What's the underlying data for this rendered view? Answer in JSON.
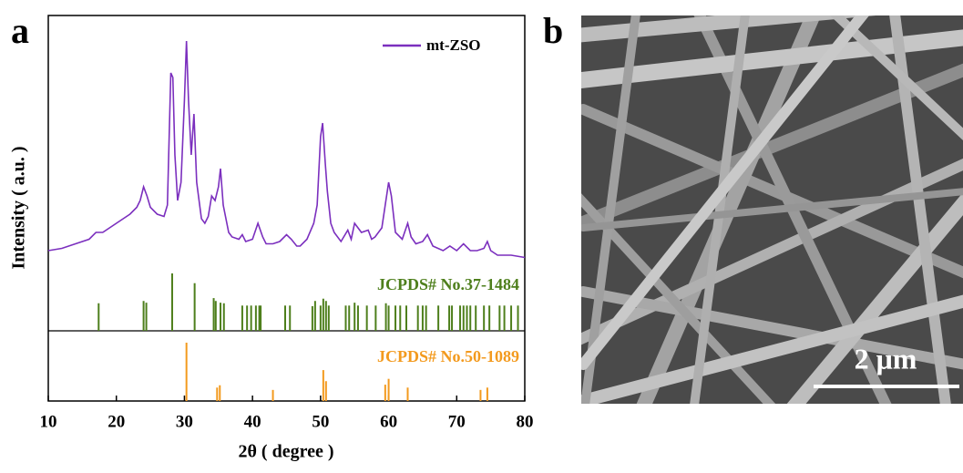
{
  "chart_data": {
    "type": "line",
    "panel_label": "a",
    "xlabel": "2θ ( degree )",
    "ylabel": "Intensity ( a.u. )",
    "xlim": [
      10,
      80
    ],
    "xticks": [
      10,
      20,
      30,
      40,
      50,
      60,
      70,
      80
    ],
    "ylim": [
      0,
      100
    ],
    "series": [
      {
        "name": "mt-ZSO",
        "color": "#7b2fbe",
        "x": [
          10,
          12,
          14,
          16,
          17,
          18,
          19,
          20,
          21,
          22,
          23,
          23.5,
          24,
          24.5,
          25,
          26,
          27,
          27.5,
          28,
          28.3,
          28.6,
          29,
          29.5,
          30,
          30.3,
          30.6,
          31,
          31.4,
          31.8,
          32.5,
          33,
          33.5,
          34,
          34.5,
          35,
          35.3,
          35.7,
          36.5,
          37,
          38,
          38.5,
          39,
          40,
          40.8,
          41.5,
          42,
          43,
          44,
          45,
          45.7,
          46.5,
          47,
          48,
          49,
          49.5,
          50,
          50.3,
          50.7,
          51,
          51.5,
          52,
          53,
          54,
          54.5,
          55,
          55.5,
          56,
          57,
          57.5,
          58,
          59,
          59.5,
          60,
          60.4,
          61,
          62,
          62.8,
          63.3,
          64,
          65,
          65.7,
          66.5,
          68,
          69,
          70,
          71,
          72,
          73,
          74,
          74.5,
          75,
          76,
          78,
          80
        ],
        "values": [
          6,
          7,
          9,
          11,
          14,
          14,
          16,
          18,
          20,
          22,
          25,
          28,
          34,
          30,
          25,
          22,
          21,
          26,
          84,
          82,
          48,
          28,
          36,
          72,
          98,
          72,
          48,
          66,
          36,
          20,
          18,
          21,
          30,
          28,
          34,
          42,
          26,
          14,
          12,
          11,
          13,
          10,
          11,
          18,
          12,
          9,
          9,
          10,
          13,
          11,
          8,
          8,
          11,
          18,
          26,
          56,
          62,
          44,
          32,
          18,
          14,
          10,
          15,
          11,
          18,
          16,
          14,
          15,
          11,
          12,
          16,
          26,
          36,
          30,
          14,
          11,
          18,
          12,
          9,
          10,
          13,
          8,
          6,
          8,
          6,
          9,
          6,
          6,
          7,
          10,
          6,
          4,
          4,
          3
        ]
      }
    ],
    "reference_patterns": [
      {
        "name": "JCPDS# No.37-1484",
        "color": "#4e7f1c",
        "positions": [
          17.4,
          24.0,
          24.4,
          28.2,
          31.5,
          34.3,
          34.6,
          35.3,
          35.8,
          38.5,
          39.2,
          39.8,
          40.5,
          41.0,
          41.2,
          44.8,
          45.5,
          48.8,
          49.2,
          50.0,
          50.4,
          50.8,
          51.2,
          53.7,
          54.2,
          55.0,
          55.5,
          56.8,
          58.1,
          59.6,
          60.0,
          61.0,
          61.7,
          62.6,
          64.3,
          65.0,
          65.5,
          67.3,
          68.9,
          69.3,
          70.5,
          71.0,
          71.5,
          72.0,
          72.8,
          74.0,
          74.8,
          76.3,
          77.0,
          78.0,
          79.0
        ],
        "intensities": [
          48,
          52,
          49,
          100,
          83,
          57,
          52,
          49,
          48,
          44,
          44,
          44,
          44,
          44,
          44,
          44,
          44,
          43,
          52,
          44,
          56,
          52,
          44,
          44,
          44,
          49,
          44,
          44,
          44,
          48,
          44,
          44,
          44,
          44,
          44,
          44,
          44,
          44,
          44,
          44,
          44,
          44,
          44,
          44,
          44,
          44,
          44,
          44,
          44,
          44,
          44
        ]
      },
      {
        "name": "JCPDS# No.50-1089",
        "color": "#f39a1e",
        "positions": [
          30.3,
          34.8,
          35.2,
          43.0,
          50.4,
          50.8,
          59.5,
          60.0,
          62.8,
          73.5,
          74.5
        ],
        "intensities": [
          100,
          23,
          27,
          19,
          53,
          34,
          28,
          38,
          23,
          19,
          23
        ]
      }
    ]
  },
  "image_panel": {
    "label": "b",
    "scale_bar": "2 μm"
  }
}
